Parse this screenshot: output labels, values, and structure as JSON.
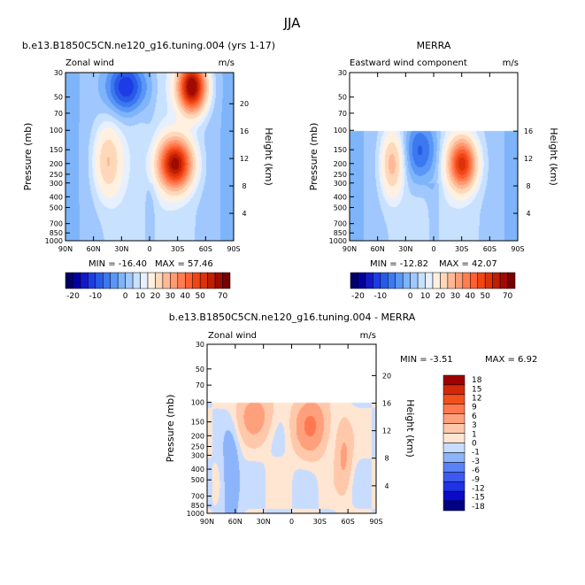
{
  "figure": {
    "title": "JJA"
  },
  "colors": {
    "diverging_22": [
      "#000066",
      "#0000a0",
      "#1419c8",
      "#1e3ce6",
      "#285ae6",
      "#3c78f0",
      "#5a96f5",
      "#7db4fa",
      "#a0c8ff",
      "#c8e1ff",
      "#e6f0ff",
      "#fff0e0",
      "#ffd7b9",
      "#ffb996",
      "#ff9b73",
      "#ff7d50",
      "#ff5f32",
      "#f04614",
      "#dc320a",
      "#be1e05",
      "#a00a00",
      "#780000"
    ],
    "difference_14": [
      "#000080",
      "#0a0ac8",
      "#1e32e6",
      "#3c5af0",
      "#5a82f5",
      "#8cb4fa",
      "#c8dcff",
      "#ffe6d2",
      "#ffc8aa",
      "#ffa07d",
      "#ff7850",
      "#f0501e",
      "#d2280a",
      "#a00000"
    ]
  },
  "chart_data": [
    {
      "type": "heatmap",
      "panel": "model",
      "title": "b.e13.B1850C5CN.ne120_g16.tuning.004 (yrs 1-17)",
      "left_label": "Zonal wind",
      "units": "m/s",
      "ylabel": "Pressure (mb)",
      "ylabel_right": "Height (km)",
      "x_ticks": [
        "90N",
        "60N",
        "30N",
        "0",
        "30S",
        "60S",
        "90S"
      ],
      "x_tick_values": [
        90,
        60,
        30,
        0,
        -30,
        -60,
        -90
      ],
      "y_ticks": [
        30,
        50,
        70,
        100,
        150,
        200,
        250,
        300,
        400,
        500,
        700,
        850,
        1000
      ],
      "y_ticks_right": [
        4,
        8,
        12,
        16,
        20
      ],
      "xlim": [
        90,
        -90
      ],
      "ylim_mb": [
        1000,
        30
      ],
      "y_scale": "log",
      "min_label": "MIN = -16.40",
      "max_label": "MAX =  57.46",
      "min": -16.4,
      "max": 57.46,
      "data_top_mb": 30,
      "colorbar_levels": [
        "-20",
        "-10",
        "0",
        "10",
        "20",
        "30",
        "40",
        "50",
        "70"
      ],
      "features": [
        {
          "lat": 45,
          "p": 190,
          "value": 15,
          "sigma_lat": 10,
          "sigma_logp": 0.5
        },
        {
          "lat": -27,
          "p": 200,
          "value": 52,
          "sigma_lat": 12,
          "sigma_logp": 0.35
        },
        {
          "lat": -45,
          "p": 40,
          "value": 57,
          "sigma_lat": 10,
          "sigma_logp": 0.35
        },
        {
          "lat": 25,
          "p": 40,
          "value": -16,
          "sigma_lat": 15,
          "sigma_logp": 0.4
        }
      ]
    },
    {
      "type": "heatmap",
      "panel": "merra",
      "title": "MERRA",
      "left_label": "Eastward wind component",
      "units": "m/s",
      "ylabel": "Pressure (mb)",
      "ylabel_right": "Height (km)",
      "x_ticks": [
        "90N",
        "60N",
        "30N",
        "0",
        "30S",
        "60S",
        "90S"
      ],
      "x_tick_values": [
        90,
        60,
        30,
        0,
        -30,
        -60,
        -90
      ],
      "y_ticks": [
        30,
        50,
        70,
        100,
        150,
        200,
        250,
        300,
        400,
        500,
        700,
        850,
        1000
      ],
      "y_ticks_right": [
        4,
        8,
        12,
        16
      ],
      "xlim": [
        90,
        -90
      ],
      "ylim_mb": [
        1000,
        30
      ],
      "y_scale": "log",
      "min_label": "MIN = -12.82",
      "max_label": "MAX =  42.07",
      "min": -12.82,
      "max": 42.07,
      "data_top_mb": 100,
      "colorbar_levels": [
        "-20",
        "-10",
        "0",
        "10",
        "20",
        "30",
        "40",
        "50",
        "70"
      ],
      "features": [
        {
          "lat": 45,
          "p": 200,
          "value": 17,
          "sigma_lat": 8,
          "sigma_logp": 0.45
        },
        {
          "lat": -30,
          "p": 200,
          "value": 42,
          "sigma_lat": 10,
          "sigma_logp": 0.35
        },
        {
          "lat": 15,
          "p": 150,
          "value": -12,
          "sigma_lat": 12,
          "sigma_logp": 0.5
        }
      ]
    },
    {
      "type": "heatmap",
      "panel": "difference",
      "title": "b.e13.B1850C5CN.ne120_g16.tuning.004 - MERRA",
      "left_label": "Zonal wind",
      "units": "m/s",
      "ylabel": "Pressure (mb)",
      "ylabel_right": "Height (km)",
      "x_ticks": [
        "90N",
        "60N",
        "30N",
        "0",
        "30S",
        "60S",
        "90S"
      ],
      "x_tick_values": [
        90,
        60,
        30,
        0,
        -30,
        -60,
        -90
      ],
      "y_ticks": [
        30,
        50,
        70,
        100,
        150,
        200,
        250,
        300,
        400,
        500,
        700,
        850,
        1000
      ],
      "y_ticks_right": [
        4,
        8,
        12,
        16,
        20
      ],
      "xlim": [
        90,
        -90
      ],
      "ylim_mb": [
        1000,
        30
      ],
      "y_scale": "log",
      "min_label": "MIN =   -3.51",
      "max_label": "MAX =    6.92",
      "min": -3.51,
      "max": 6.92,
      "data_top_mb": 100,
      "colorbar_levels": [
        "18",
        "15",
        "12",
        "9",
        "6",
        "3",
        "1",
        "0",
        "-1",
        "-3",
        "-6",
        "-9",
        "-12",
        "-15",
        "-18"
      ],
      "features": [
        {
          "lat": -20,
          "p": 160,
          "value": 6.5,
          "sigma_lat": 12,
          "sigma_logp": 0.4
        },
        {
          "lat": 40,
          "p": 130,
          "value": 4.5,
          "sigma_lat": 12,
          "sigma_logp": 0.35
        },
        {
          "lat": 65,
          "p": 500,
          "value": -3.2,
          "sigma_lat": 6,
          "sigma_logp": 0.6
        },
        {
          "lat": -55,
          "p": 300,
          "value": 3.5,
          "sigma_lat": 6,
          "sigma_logp": 0.5
        }
      ]
    }
  ]
}
